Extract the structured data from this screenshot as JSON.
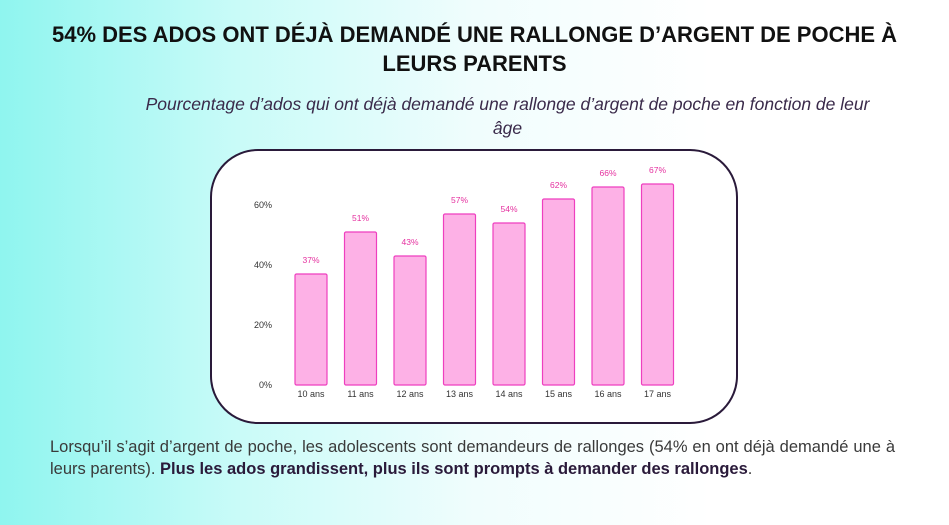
{
  "title": "54% DES ADOS ONT DÉJÀ DEMANDÉ UNE RALLONGE D’ARGENT DE POCHE À LEURS PARENTS",
  "subtitle": "Pourcentage d’ados qui ont déjà demandé une rallonge d’argent de poche en fonction de leur âge",
  "paragraph": {
    "normal": "Lorsqu’il s’agit d’argent de poche, les adolescents sont demandeurs de rallonges (54% en ont déjà demandé une à leurs parents). ",
    "bold": "Plus les ados grandissent, plus ils sont prompts à demander des rallonges",
    "end": "."
  },
  "colors": {
    "bar_fill": "#fdb1e6",
    "bar_stroke": "#ee3fbf",
    "label": "#e5309f",
    "axis_text": "#333333"
  },
  "chart_data": {
    "type": "bar",
    "categories": [
      "10 ans",
      "11 ans",
      "12 ans",
      "13 ans",
      "14 ans",
      "15 ans",
      "16 ans",
      "17 ans"
    ],
    "values": [
      37,
      51,
      43,
      57,
      54,
      62,
      66,
      67
    ],
    "data_labels": [
      "37%",
      "51%",
      "43%",
      "57%",
      "54%",
      "62%",
      "66%",
      "67%"
    ],
    "yticks": [
      "0%",
      "20%",
      "40%",
      "60%"
    ],
    "ytick_values": [
      0,
      20,
      40,
      60
    ],
    "ylim": [
      0,
      70
    ],
    "grid": false,
    "xlabel": "",
    "ylabel": ""
  }
}
